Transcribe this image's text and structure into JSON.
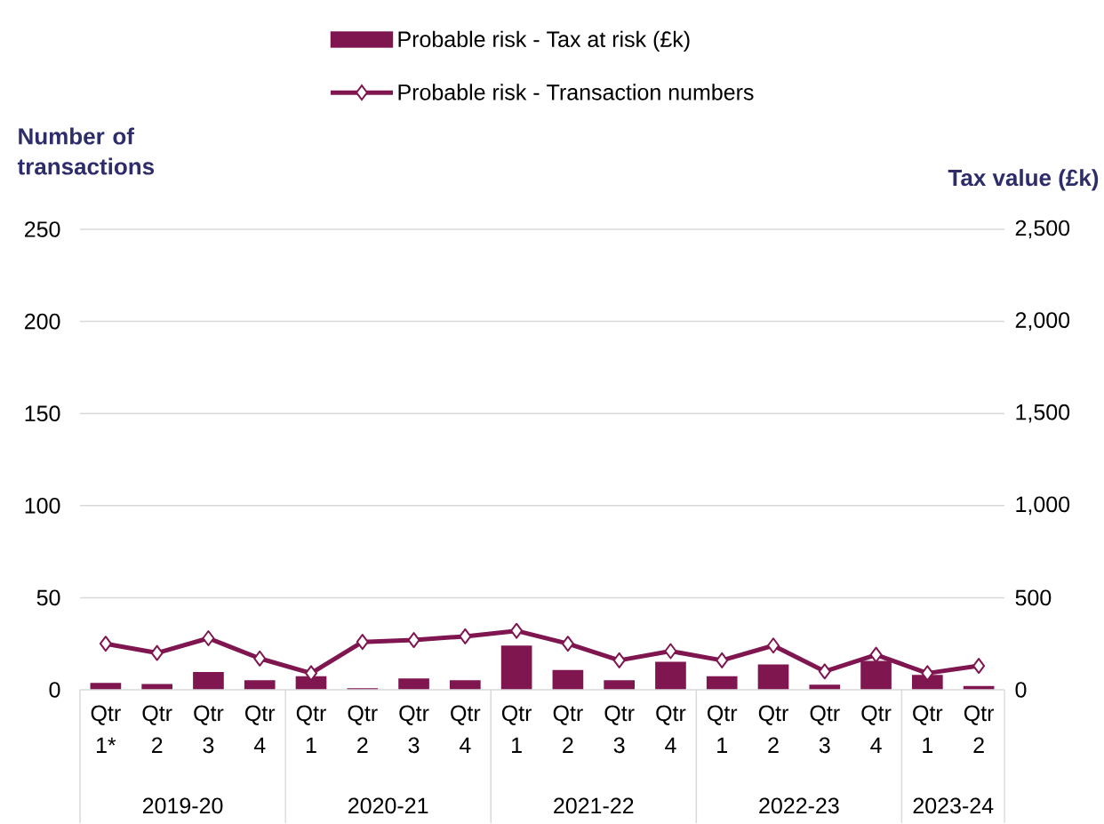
{
  "chart_data": {
    "type": "bar",
    "categories": [
      "Qtr 1*",
      "Qtr 2",
      "Qtr 3",
      "Qtr 4",
      "Qtr 1",
      "Qtr 2",
      "Qtr 3",
      "Qtr 4",
      "Qtr 1",
      "Qtr 2",
      "Qtr 3",
      "Qtr 4",
      "Qtr 1",
      "Qtr 2",
      "Qtr 3",
      "Qtr 4",
      "Qtr 1",
      "Qtr 2"
    ],
    "series": [
      {
        "name": "Probable risk - Tax at risk (£k)",
        "axis": "y2",
        "color": "#7f1650",
        "values": [
          38,
          31,
          96,
          52,
          74,
          9,
          62,
          52,
          240,
          107,
          52,
          152,
          74,
          138,
          28,
          157,
          81,
          21
        ]
      },
      {
        "name": "Probable risk - Transaction numbers",
        "type": "line",
        "axis": "y",
        "color": "#7f1650",
        "marker": "diamond",
        "values": [
          25,
          20,
          28,
          17,
          9,
          26,
          27,
          29,
          32,
          25,
          16,
          21,
          16,
          24,
          10,
          19,
          9,
          13
        ]
      }
    ],
    "ylabel": "Number of transactions",
    "y2label": "Tax value (£k)",
    "ylim": [
      0,
      250
    ],
    "yticks": [
      0,
      50,
      100,
      150,
      200,
      250
    ],
    "y2lim": [
      0,
      2500
    ],
    "y2ticks": [
      0,
      500,
      {
        "value": 1000,
        "label": "1,000"
      },
      {
        "value": 1500,
        "label": "1,500"
      },
      {
        "value": 2000,
        "label": "2,000"
      },
      {
        "value": 2500,
        "label": "2,500"
      }
    ],
    "annotations": [
      "2019-20",
      "2020-21",
      "2021-22",
      "2022-23",
      "2023-24"
    ],
    "grid": "y",
    "legend": "top"
  }
}
